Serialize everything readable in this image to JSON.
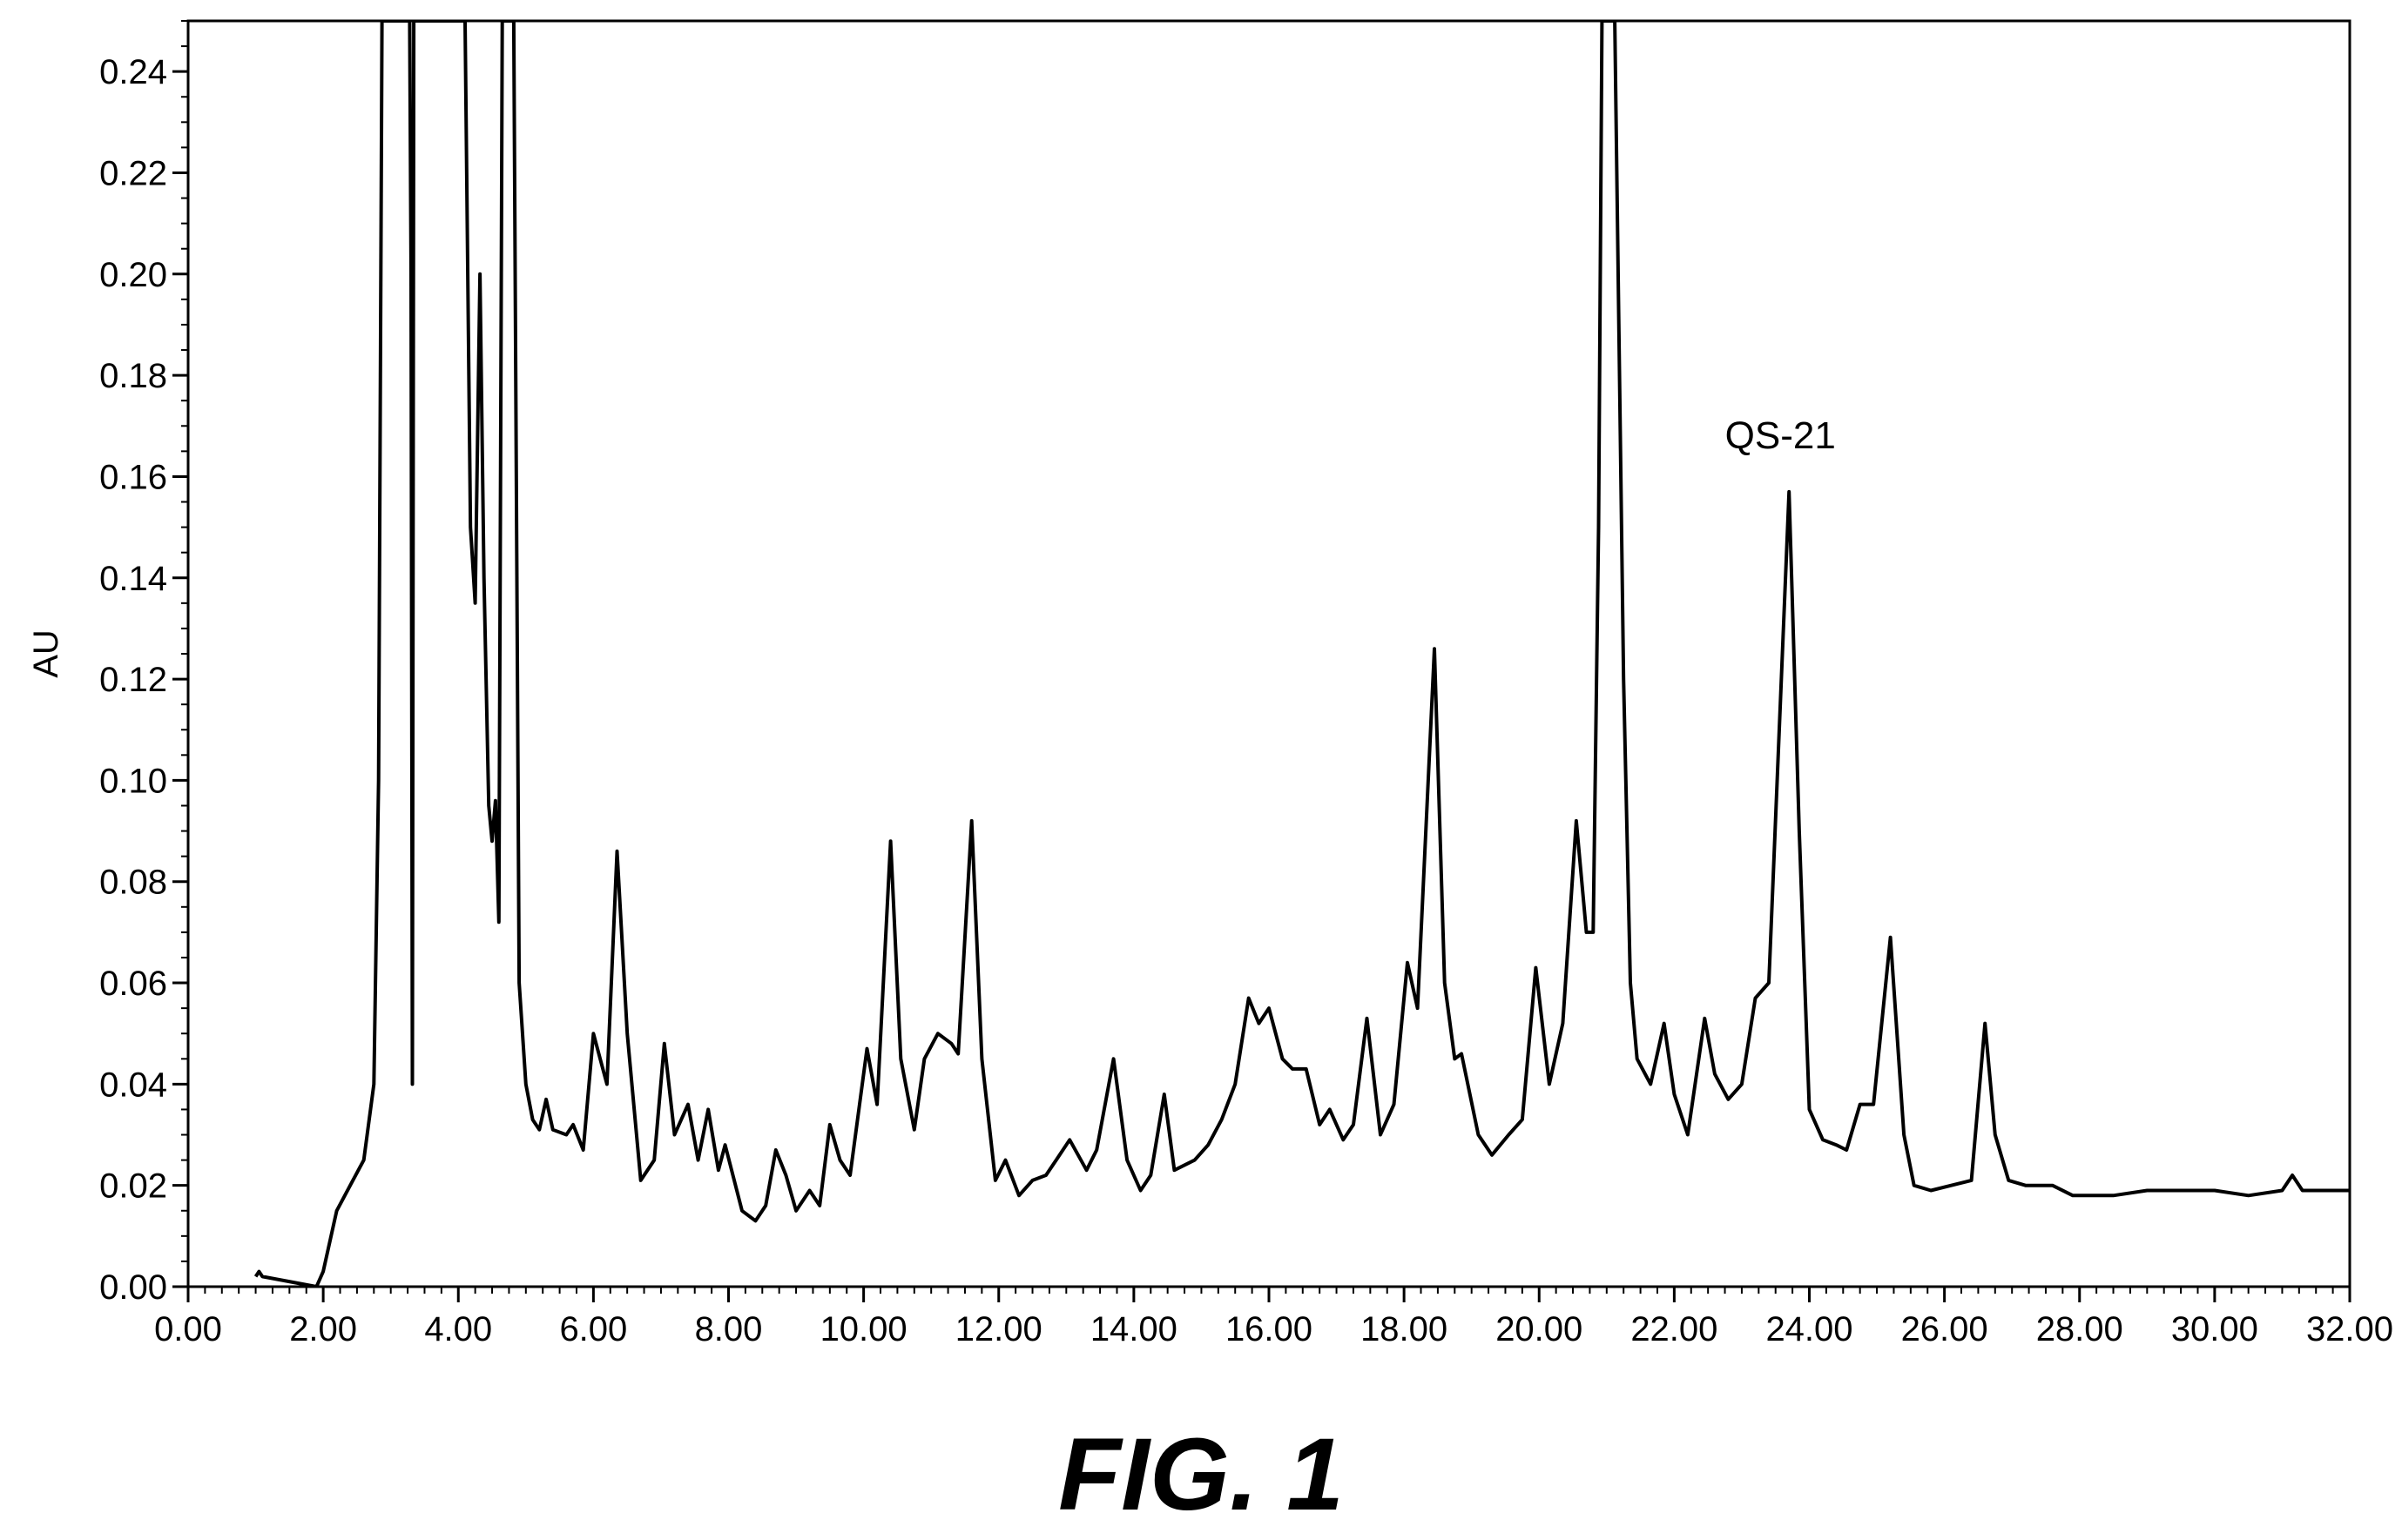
{
  "caption": "FIG. 1",
  "chart_data": {
    "type": "line",
    "ylabel": "AU",
    "xlabel": "",
    "xlim": [
      0,
      32
    ],
    "ylim": [
      0,
      0.25
    ],
    "x_ticks": [
      "0.00",
      "2.00",
      "4.00",
      "6.00",
      "8.00",
      "10.00",
      "12.00",
      "14.00",
      "16.00",
      "18.00",
      "20.00",
      "22.00",
      "24.00",
      "26.00",
      "28.00",
      "30.00",
      "32.00"
    ],
    "y_ticks": [
      "0.00",
      "0.02",
      "0.04",
      "0.06",
      "0.08",
      "0.10",
      "0.12",
      "0.14",
      "0.16",
      "0.18",
      "0.20",
      "0.22",
      "0.24"
    ],
    "grid": false,
    "annotations": [
      {
        "text": "QS-21",
        "x": 23.7,
        "y": 0.157
      }
    ],
    "series": [
      {
        "values": [
          [
            1.0,
            0.002
          ],
          [
            1.05,
            0.003
          ],
          [
            1.1,
            0.002
          ],
          [
            1.9,
            0.0
          ],
          [
            2.0,
            0.003
          ],
          [
            2.2,
            0.015
          ],
          [
            2.4,
            0.02
          ],
          [
            2.6,
            0.025
          ],
          [
            2.75,
            0.04
          ],
          [
            2.82,
            0.1
          ],
          [
            2.87,
            0.25
          ],
          [
            3.28,
            0.25
          ],
          [
            3.3,
            0.2
          ],
          [
            3.32,
            0.04
          ],
          [
            3.34,
            0.25
          ],
          [
            4.1,
            0.25
          ],
          [
            4.18,
            0.15
          ],
          [
            4.25,
            0.135
          ],
          [
            4.32,
            0.2
          ],
          [
            4.38,
            0.14
          ],
          [
            4.45,
            0.095
          ],
          [
            4.5,
            0.088
          ],
          [
            4.55,
            0.096
          ],
          [
            4.6,
            0.072
          ],
          [
            4.65,
            0.25
          ],
          [
            4.82,
            0.25
          ],
          [
            4.9,
            0.06
          ],
          [
            5.0,
            0.04
          ],
          [
            5.1,
            0.033
          ],
          [
            5.2,
            0.031
          ],
          [
            5.3,
            0.037
          ],
          [
            5.4,
            0.031
          ],
          [
            5.6,
            0.03
          ],
          [
            5.7,
            0.032
          ],
          [
            5.85,
            0.027
          ],
          [
            6.0,
            0.05
          ],
          [
            6.1,
            0.045
          ],
          [
            6.2,
            0.04
          ],
          [
            6.35,
            0.086
          ],
          [
            6.5,
            0.05
          ],
          [
            6.7,
            0.021
          ],
          [
            6.9,
            0.025
          ],
          [
            7.05,
            0.048
          ],
          [
            7.2,
            0.03
          ],
          [
            7.4,
            0.036
          ],
          [
            7.55,
            0.025
          ],
          [
            7.7,
            0.035
          ],
          [
            7.85,
            0.023
          ],
          [
            7.95,
            0.028
          ],
          [
            8.2,
            0.015
          ],
          [
            8.4,
            0.013
          ],
          [
            8.55,
            0.016
          ],
          [
            8.7,
            0.027
          ],
          [
            8.85,
            0.022
          ],
          [
            9.0,
            0.015
          ],
          [
            9.2,
            0.019
          ],
          [
            9.35,
            0.016
          ],
          [
            9.5,
            0.032
          ],
          [
            9.65,
            0.025
          ],
          [
            9.8,
            0.022
          ],
          [
            10.05,
            0.047
          ],
          [
            10.2,
            0.036
          ],
          [
            10.4,
            0.088
          ],
          [
            10.55,
            0.045
          ],
          [
            10.75,
            0.031
          ],
          [
            10.9,
            0.045
          ],
          [
            11.1,
            0.05
          ],
          [
            11.3,
            0.048
          ],
          [
            11.4,
            0.046
          ],
          [
            11.6,
            0.092
          ],
          [
            11.75,
            0.045
          ],
          [
            11.95,
            0.021
          ],
          [
            12.1,
            0.025
          ],
          [
            12.3,
            0.018
          ],
          [
            12.5,
            0.021
          ],
          [
            12.7,
            0.022
          ],
          [
            12.85,
            0.025
          ],
          [
            13.05,
            0.029
          ],
          [
            13.3,
            0.023
          ],
          [
            13.45,
            0.027
          ],
          [
            13.7,
            0.045
          ],
          [
            13.9,
            0.025
          ],
          [
            14.1,
            0.019
          ],
          [
            14.25,
            0.022
          ],
          [
            14.45,
            0.038
          ],
          [
            14.6,
            0.023
          ],
          [
            14.9,
            0.025
          ],
          [
            15.1,
            0.028
          ],
          [
            15.3,
            0.033
          ],
          [
            15.5,
            0.04
          ],
          [
            15.7,
            0.057
          ],
          [
            15.85,
            0.052
          ],
          [
            16.0,
            0.055
          ],
          [
            16.2,
            0.045
          ],
          [
            16.35,
            0.043
          ],
          [
            16.55,
            0.043
          ],
          [
            16.75,
            0.032
          ],
          [
            16.9,
            0.035
          ],
          [
            17.1,
            0.029
          ],
          [
            17.25,
            0.032
          ],
          [
            17.45,
            0.053
          ],
          [
            17.65,
            0.03
          ],
          [
            17.85,
            0.036
          ],
          [
            18.05,
            0.064
          ],
          [
            18.2,
            0.055
          ],
          [
            18.45,
            0.126
          ],
          [
            18.6,
            0.06
          ],
          [
            18.75,
            0.045
          ],
          [
            18.85,
            0.046
          ],
          [
            19.1,
            0.03
          ],
          [
            19.3,
            0.026
          ],
          [
            19.55,
            0.03
          ],
          [
            19.75,
            0.033
          ],
          [
            19.95,
            0.063
          ],
          [
            20.15,
            0.04
          ],
          [
            20.35,
            0.052
          ],
          [
            20.55,
            0.092
          ],
          [
            20.7,
            0.07
          ],
          [
            20.8,
            0.07
          ],
          [
            20.88,
            0.15
          ],
          [
            20.93,
            0.25
          ],
          [
            21.12,
            0.25
          ],
          [
            21.25,
            0.12
          ],
          [
            21.35,
            0.06
          ],
          [
            21.45,
            0.045
          ],
          [
            21.65,
            0.04
          ],
          [
            21.85,
            0.052
          ],
          [
            22.0,
            0.038
          ],
          [
            22.2,
            0.03
          ],
          [
            22.45,
            0.053
          ],
          [
            22.6,
            0.042
          ],
          [
            22.8,
            0.037
          ],
          [
            23.0,
            0.04
          ],
          [
            23.2,
            0.057
          ],
          [
            23.4,
            0.06
          ],
          [
            23.7,
            0.157
          ],
          [
            23.85,
            0.09
          ],
          [
            24.0,
            0.035
          ],
          [
            24.2,
            0.029
          ],
          [
            24.4,
            0.028
          ],
          [
            24.55,
            0.027
          ],
          [
            24.75,
            0.036
          ],
          [
            24.95,
            0.036
          ],
          [
            25.2,
            0.069
          ],
          [
            25.4,
            0.03
          ],
          [
            25.55,
            0.02
          ],
          [
            25.8,
            0.019
          ],
          [
            26.1,
            0.02
          ],
          [
            26.4,
            0.021
          ],
          [
            26.6,
            0.052
          ],
          [
            26.75,
            0.03
          ],
          [
            26.95,
            0.021
          ],
          [
            27.2,
            0.02
          ],
          [
            27.6,
            0.02
          ],
          [
            27.9,
            0.018
          ],
          [
            28.5,
            0.018
          ],
          [
            29.0,
            0.019
          ],
          [
            30.0,
            0.019
          ],
          [
            30.5,
            0.018
          ],
          [
            31.0,
            0.019
          ],
          [
            31.15,
            0.022
          ],
          [
            31.3,
            0.019
          ],
          [
            31.6,
            0.019
          ],
          [
            32.0,
            0.019
          ]
        ]
      }
    ]
  }
}
